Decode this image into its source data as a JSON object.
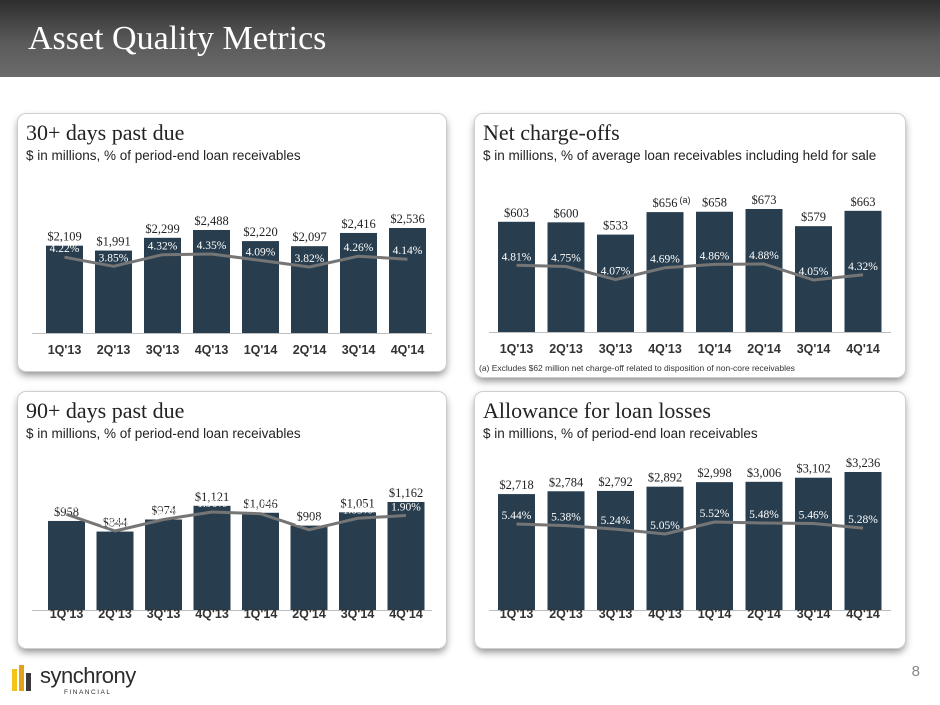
{
  "page": {
    "title": "Asset Quality Metrics",
    "page_number": "8"
  },
  "logo": {
    "name": "synchrony",
    "sub": "FINANCIAL",
    "mark_colors": [
      "#f3c318",
      "#e0a21a",
      "#3a3a3a"
    ]
  },
  "colors": {
    "bar": "#283e4f",
    "line": "#757575",
    "bar_label_text": "#ffffff",
    "value_label_text": "#222222",
    "axis_text": "#333333"
  },
  "panels": [
    {
      "title": "30+ days past due",
      "subtitle": "$ in millions, % of period-end loan receivables",
      "footnote": "",
      "chart_data": {
        "type": "bar",
        "categories": [
          "1Q'13",
          "2Q'13",
          "3Q'13",
          "4Q'13",
          "1Q'14",
          "2Q'14",
          "3Q'14",
          "4Q'14"
        ],
        "values": [
          2109,
          1991,
          2299,
          2488,
          2220,
          2097,
          2416,
          2536
        ],
        "value_labels": [
          "$2,109",
          "$1,991",
          "$2,299",
          "$2,488",
          "$2,220",
          "$2,097",
          "$2,416",
          "$2,536"
        ],
        "line_values": [
          4.22,
          3.85,
          4.32,
          4.35,
          4.09,
          3.82,
          4.26,
          4.14
        ],
        "line_labels": [
          "4.22%",
          "3.85%",
          "4.32%",
          "4.35%",
          "4.09%",
          "3.82%",
          "4.26%",
          "4.14%"
        ],
        "annotation": {
          "index": null,
          "text": ""
        }
      }
    },
    {
      "title": "Net charge-offs",
      "subtitle": "$ in millions, % of average loan receivables including held for sale",
      "footnote": "(a) Excludes $62 million net charge-off related to disposition of non-core receivables",
      "chart_data": {
        "type": "bar",
        "categories": [
          "1Q'13",
          "2Q'13",
          "3Q'13",
          "4Q'13",
          "1Q'14",
          "2Q'14",
          "3Q'14",
          "4Q'14"
        ],
        "values": [
          603,
          600,
          533,
          656,
          658,
          673,
          579,
          663
        ],
        "value_labels": [
          "$603",
          "$600",
          "$533",
          "$656",
          "$658",
          "$673",
          "$579",
          "$663"
        ],
        "line_values": [
          4.81,
          4.75,
          4.07,
          4.69,
          4.86,
          4.88,
          4.05,
          4.32
        ],
        "line_labels": [
          "4.81%",
          "4.75%",
          "4.07%",
          "4.69%",
          "4.86%",
          "4.88%",
          "4.05%",
          "4.32%"
        ],
        "annotation": {
          "index": 3,
          "text": "(a)"
        }
      }
    },
    {
      "title": "90+ days past due",
      "subtitle": "$ in millions, % of period-end loan receivables",
      "footnote": "",
      "chart_data": {
        "type": "bar",
        "categories": [
          "1Q'13",
          "2Q'13",
          "3Q'13",
          "4Q'13",
          "1Q'14",
          "2Q'14",
          "3Q'14",
          "4Q'14"
        ],
        "values": [
          958,
          844,
          974,
          1121,
          1046,
          908,
          1051,
          1162
        ],
        "value_labels": [
          "$958",
          "$844",
          "$974",
          "$1,121",
          "$1,046",
          "$908",
          "$1,051",
          "$1,162"
        ],
        "line_values": [
          1.92,
          1.63,
          1.83,
          1.96,
          1.93,
          1.65,
          1.85,
          1.9
        ],
        "line_labels": [
          "1.92%",
          "1.63%",
          "1.83%",
          "1.96%",
          "1.93%",
          "1.65%",
          "1.85%",
          "1.90%"
        ],
        "annotation": {
          "index": null,
          "text": ""
        }
      }
    },
    {
      "title": "Allowance for loan losses",
      "subtitle": "$ in millions, % of period-end loan receivables",
      "footnote": "",
      "chart_data": {
        "type": "bar",
        "categories": [
          "1Q'13",
          "2Q'13",
          "3Q'13",
          "4Q'13",
          "1Q'14",
          "2Q'14",
          "3Q'14",
          "4Q'14"
        ],
        "values": [
          2718,
          2784,
          2792,
          2892,
          2998,
          3006,
          3102,
          3236
        ],
        "value_labels": [
          "$2,718",
          "$2,784",
          "$2,792",
          "$2,892",
          "$2,998",
          "$3,006",
          "$3,102",
          "$3,236"
        ],
        "line_values": [
          5.44,
          5.38,
          5.24,
          5.05,
          5.52,
          5.48,
          5.46,
          5.28
        ],
        "line_labels": [
          "5.44%",
          "5.38%",
          "5.24%",
          "5.05%",
          "5.52%",
          "5.48%",
          "5.46%",
          "5.28%"
        ],
        "annotation": {
          "index": null,
          "text": ""
        }
      }
    }
  ]
}
